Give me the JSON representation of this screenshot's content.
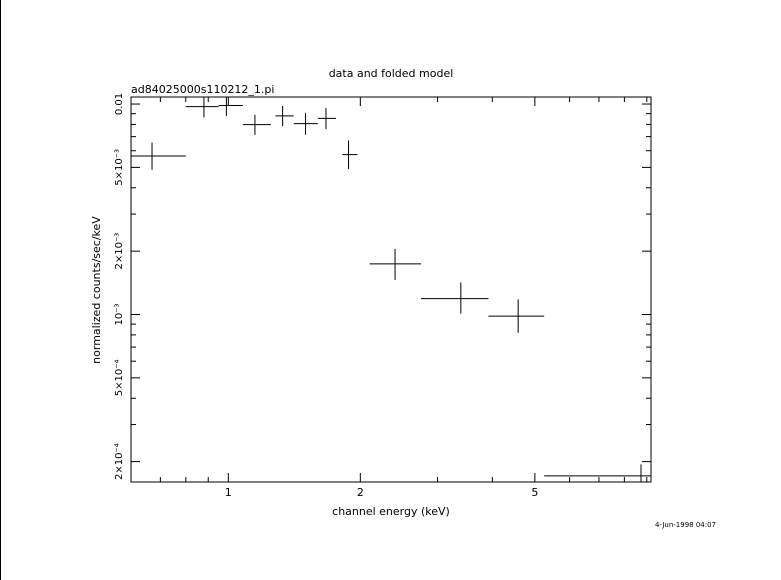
{
  "chart_data": {
    "type": "scatter",
    "title": "data and folded model",
    "subtitle": "ad84025000s110212_1.pi",
    "xlabel": "channel energy (keV)",
    "ylabel": "normalized counts/sec/keV",
    "xscale": "log",
    "yscale": "log",
    "xlim": [
      0.6,
      9.2
    ],
    "ylim": [
      0.00016,
      0.0108
    ],
    "grid": false,
    "x_ticks": [
      {
        "value": 1,
        "label": "1"
      },
      {
        "value": 2,
        "label": "2"
      },
      {
        "value": 5,
        "label": "5"
      }
    ],
    "y_ticks": [
      {
        "value": 0.01,
        "label": "0.01"
      },
      {
        "value": 0.005,
        "label": "5×10⁻³"
      },
      {
        "value": 0.002,
        "label": "2×10⁻³"
      },
      {
        "value": 0.001,
        "label": "10⁻³"
      },
      {
        "value": 0.0005,
        "label": "5×10⁻⁴"
      },
      {
        "value": 0.0002,
        "label": "2×10⁻⁴"
      }
    ],
    "points": [
      {
        "x": 0.67,
        "xlo": 0.6,
        "xhi": 0.8,
        "y": 0.00566,
        "ylo": 0.00487,
        "yhi": 0.00656
      },
      {
        "x": 0.88,
        "xlo": 0.8,
        "xhi": 0.95,
        "y": 0.00972,
        "ylo": 0.00865,
        "yhi": 0.0108
      },
      {
        "x": 0.99,
        "xlo": 0.95,
        "xhi": 1.08,
        "y": 0.00984,
        "ylo": 0.00877,
        "yhi": 0.0108
      },
      {
        "x": 1.15,
        "xlo": 1.08,
        "xhi": 1.25,
        "y": 0.00798,
        "ylo": 0.00713,
        "yhi": 0.00889
      },
      {
        "x": 1.33,
        "xlo": 1.28,
        "xhi": 1.41,
        "y": 0.00879,
        "ylo": 0.00785,
        "yhi": 0.00979
      },
      {
        "x": 1.5,
        "xlo": 1.41,
        "xhi": 1.6,
        "y": 0.00807,
        "ylo": 0.00715,
        "yhi": 0.00908
      },
      {
        "x": 1.67,
        "xlo": 1.6,
        "xhi": 1.76,
        "y": 0.00855,
        "ylo": 0.0076,
        "yhi": 0.00958
      },
      {
        "x": 1.88,
        "xlo": 1.82,
        "xhi": 1.97,
        "y": 0.00575,
        "ylo": 0.00491,
        "yhi": 0.00672
      },
      {
        "x": 2.4,
        "xlo": 2.1,
        "xhi": 2.75,
        "y": 0.00174,
        "ylo": 0.00146,
        "yhi": 0.00205
      },
      {
        "x": 3.39,
        "xlo": 2.75,
        "xhi": 3.92,
        "y": 0.00119,
        "ylo": 0.00101,
        "yhi": 0.00142
      },
      {
        "x": 4.58,
        "xlo": 3.92,
        "xhi": 5.25,
        "y": 0.000983,
        "ylo": 0.000818,
        "yhi": 0.00118
      },
      {
        "x": 8.73,
        "xlo": 5.25,
        "xhi": 9.2,
        "y": 0.000171,
        "ylo": 0.00016,
        "yhi": 0.000194
      }
    ]
  },
  "timestamp": "4-Jun-1998 04:07"
}
